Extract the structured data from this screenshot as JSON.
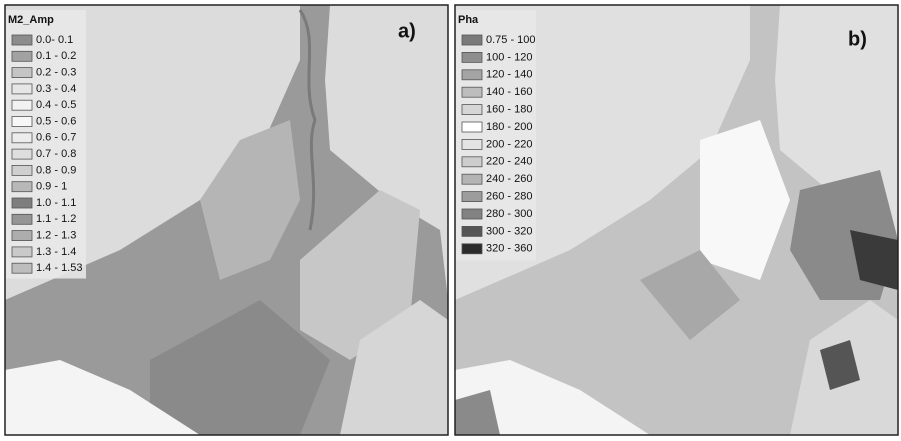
{
  "panels": [
    {
      "tag": "a)",
      "legend": {
        "title": "M2_Amp",
        "items": [
          {
            "label": "0.0- 0.1",
            "color": "#8c8c8c"
          },
          {
            "label": "0.1 - 0.2",
            "color": "#a2a2a2"
          },
          {
            "label": "0.2 - 0.3",
            "color": "#c4c4c4"
          },
          {
            "label": "0.3 - 0.4",
            "color": "#e6e6e6"
          },
          {
            "label": "0.4 - 0.5",
            "color": "#f2f2f2"
          },
          {
            "label": "0.5 - 0.6",
            "color": "#f7f7f7"
          },
          {
            "label": "0.6 - 0.7",
            "color": "#ececec"
          },
          {
            "label": "0.7 - 0.8",
            "color": "#dedede"
          },
          {
            "label": "0.8 - 0.9",
            "color": "#cfcfcf"
          },
          {
            "label": "0.9 - 1",
            "color": "#b8b8b8"
          },
          {
            "label": "1.0 - 1.1",
            "color": "#7e7e7e"
          },
          {
            "label": "1.1 - 1.2",
            "color": "#959595"
          },
          {
            "label": "1.2 - 1.3",
            "color": "#adadad"
          },
          {
            "label": "1.3 - 1.4",
            "color": "#c9c9c9"
          },
          {
            "label": "1.4 - 1.53",
            "color": "#bdbdbd"
          }
        ]
      }
    },
    {
      "tag": "b)",
      "legend": {
        "title": "Pha",
        "items": [
          {
            "label": "0.75 - 100",
            "color": "#7a7a7a"
          },
          {
            "label": "100 - 120",
            "color": "#8e8e8e"
          },
          {
            "label": "120 - 140",
            "color": "#a4a4a4"
          },
          {
            "label": "140 - 160",
            "color": "#bdbdbd"
          },
          {
            "label": "160 - 180",
            "color": "#d6d6d6"
          },
          {
            "label": "180 - 200",
            "color": "#ffffff"
          },
          {
            "label": "200 - 220",
            "color": "#e4e4e4"
          },
          {
            "label": "220 - 240",
            "color": "#cdcdcd"
          },
          {
            "label": "240 - 260",
            "color": "#b4b4b4"
          },
          {
            "label": "260 - 280",
            "color": "#9c9c9c"
          },
          {
            "label": "280 - 300",
            "color": "#828282"
          },
          {
            "label": "300 - 320",
            "color": "#555555"
          },
          {
            "label": "320 - 360",
            "color": "#2b2b2b"
          }
        ]
      }
    }
  ]
}
